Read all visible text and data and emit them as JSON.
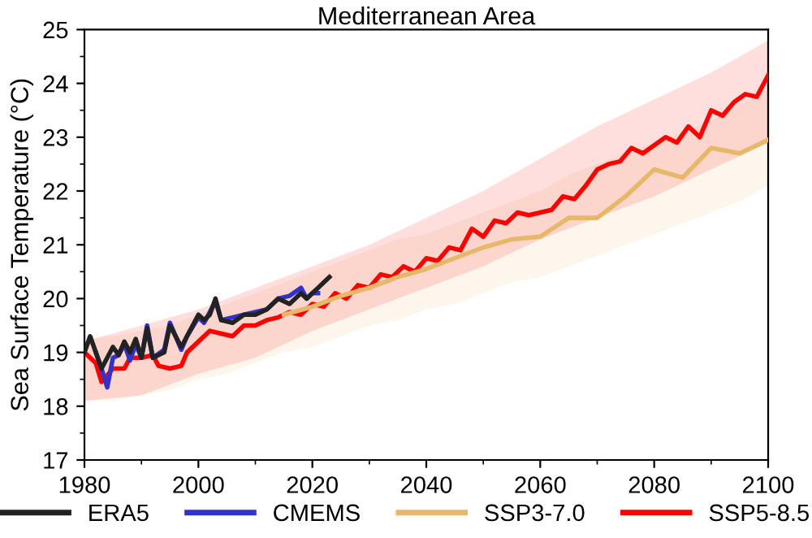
{
  "chart_data": {
    "type": "line",
    "title": "Mediterranean Area",
    "ylabel": "Sea Surface Temperature (°C)",
    "xlim": [
      1980,
      2100
    ],
    "xticks": [
      1980,
      2000,
      2020,
      2040,
      2060,
      2080,
      2100
    ],
    "ylim": [
      17,
      25
    ],
    "yticks": [
      17,
      18,
      19,
      20,
      21,
      22,
      23,
      24,
      25
    ],
    "grid": false,
    "legend": "bottom",
    "line_style": "solid",
    "marker": "none",
    "series": [
      {
        "name": "ERA5",
        "color": "#222222",
        "x": [
          1980,
          1981,
          1983,
          1985,
          1986,
          1987,
          1988,
          1989,
          1990,
          1991,
          1992,
          1994,
          1995,
          1997,
          1998,
          2000,
          2001,
          2002,
          2003,
          2004,
          2006,
          2008,
          2010,
          2012,
          2014,
          2016,
          2018,
          2019,
          2020,
          2021,
          2022,
          2023
        ],
        "values": [
          19.0,
          19.3,
          18.7,
          19.1,
          18.95,
          19.2,
          19.0,
          19.25,
          18.9,
          19.45,
          18.9,
          19.0,
          19.5,
          19.1,
          19.3,
          19.7,
          19.6,
          19.7,
          20.0,
          19.6,
          19.55,
          19.7,
          19.7,
          19.8,
          20.0,
          19.9,
          20.1,
          20.0,
          20.1,
          20.2,
          20.3,
          20.4
        ]
      },
      {
        "name": "CMEMS",
        "color": "#3333cc",
        "x": [
          1982,
          1983,
          1984,
          1985,
          1986,
          1987,
          1988,
          1989,
          1990,
          1991,
          1992,
          1994,
          1995,
          1997,
          1998,
          2000,
          2001,
          2002,
          2003,
          2004,
          2006,
          2008,
          2010,
          2012,
          2014,
          2016,
          2018,
          2019,
          2020,
          2021
        ],
        "values": [
          19.0,
          18.7,
          18.35,
          18.9,
          18.95,
          19.15,
          18.85,
          19.15,
          18.9,
          19.5,
          18.9,
          19.05,
          19.55,
          19.05,
          19.3,
          19.65,
          19.55,
          19.75,
          19.95,
          19.6,
          19.65,
          19.7,
          19.75,
          19.8,
          20.0,
          20.05,
          20.2,
          20.0,
          20.1,
          20.1
        ]
      },
      {
        "name": "SSP3-7.0",
        "color": "#e8b86a",
        "x": [
          1980,
          1985,
          1990,
          1995,
          2000,
          2005,
          2010,
          2015,
          2020,
          2025,
          2030,
          2035,
          2040,
          2045,
          2050,
          2055,
          2060,
          2065,
          2070,
          2075,
          2080,
          2085,
          2090,
          2095,
          2100
        ],
        "values": [
          null,
          null,
          null,
          null,
          null,
          null,
          null,
          19.7,
          19.85,
          20.05,
          20.2,
          20.4,
          20.55,
          20.75,
          20.95,
          21.1,
          21.15,
          21.5,
          21.5,
          21.9,
          22.4,
          22.25,
          22.8,
          22.7,
          22.95
        ],
        "upper": [
          19.3,
          19.3,
          19.4,
          19.5,
          19.7,
          19.9,
          20.1,
          20.3,
          20.5,
          20.7,
          20.9,
          21.1,
          21.2,
          21.4,
          21.6,
          21.8,
          22.0,
          22.3,
          22.5,
          22.7,
          22.9,
          23.1,
          23.3,
          23.6,
          23.9
        ],
        "lower": [
          18.1,
          18.1,
          18.2,
          18.3,
          18.5,
          18.6,
          18.8,
          19.0,
          19.1,
          19.3,
          19.5,
          19.6,
          19.8,
          19.9,
          20.1,
          20.3,
          20.4,
          20.6,
          20.8,
          21.0,
          21.2,
          21.4,
          21.6,
          21.8,
          22.1
        ]
      },
      {
        "name": "SSP5-8.5",
        "color": "#ff0000",
        "x": [
          1980,
          1982,
          1983,
          1985,
          1987,
          1988,
          1990,
          1992,
          1993,
          1995,
          1997,
          1998,
          2000,
          2002,
          2004,
          2006,
          2008,
          2010,
          2012,
          2014,
          2016,
          2018,
          2020,
          2022,
          2024,
          2026,
          2028,
          2030,
          2032,
          2034,
          2036,
          2038,
          2040,
          2042,
          2044,
          2046,
          2048,
          2050,
          2052,
          2054,
          2056,
          2058,
          2060,
          2062,
          2064,
          2066,
          2068,
          2070,
          2072,
          2074,
          2076,
          2078,
          2080,
          2082,
          2084,
          2086,
          2088,
          2090,
          2092,
          2094,
          2096,
          2098,
          2100
        ],
        "values": [
          19.0,
          18.8,
          18.45,
          18.7,
          18.7,
          18.9,
          18.9,
          18.95,
          18.75,
          18.7,
          18.75,
          19.0,
          19.2,
          19.4,
          19.35,
          19.3,
          19.5,
          19.5,
          19.6,
          19.65,
          19.75,
          19.7,
          19.9,
          19.85,
          20.1,
          20.0,
          20.25,
          20.2,
          20.45,
          20.4,
          20.6,
          20.5,
          20.75,
          20.7,
          20.95,
          20.9,
          21.3,
          21.15,
          21.45,
          21.4,
          21.6,
          21.55,
          21.6,
          21.65,
          21.9,
          21.85,
          22.1,
          22.4,
          22.5,
          22.55,
          22.8,
          22.7,
          22.85,
          23.0,
          22.9,
          23.2,
          23.0,
          23.5,
          23.4,
          23.65,
          23.8,
          23.75,
          24.15
        ],
        "upper": [
          19.2,
          null,
          null,
          null,
          null,
          null,
          19.5,
          null,
          null,
          null,
          null,
          null,
          19.8,
          null,
          null,
          null,
          null,
          20.2,
          null,
          null,
          null,
          null,
          20.6,
          null,
          null,
          null,
          null,
          21.0,
          null,
          null,
          null,
          null,
          21.5,
          null,
          null,
          null,
          null,
          22.0,
          null,
          null,
          null,
          null,
          22.6,
          null,
          null,
          null,
          null,
          23.2,
          null,
          null,
          null,
          null,
          23.7,
          null,
          null,
          null,
          null,
          24.2,
          null,
          null,
          null,
          null,
          24.8
        ],
        "lower": [
          18.1,
          null,
          null,
          null,
          null,
          null,
          18.2,
          null,
          null,
          null,
          null,
          null,
          18.6,
          null,
          null,
          null,
          null,
          18.9,
          null,
          null,
          null,
          null,
          19.4,
          null,
          null,
          null,
          null,
          19.8,
          null,
          null,
          null,
          null,
          20.2,
          null,
          null,
          null,
          null,
          20.6,
          null,
          null,
          null,
          null,
          21.1,
          null,
          null,
          null,
          null,
          21.5,
          null,
          null,
          null,
          null,
          21.9,
          null,
          null,
          null,
          null,
          22.4,
          null,
          null,
          null,
          null,
          22.9
        ]
      }
    ]
  }
}
